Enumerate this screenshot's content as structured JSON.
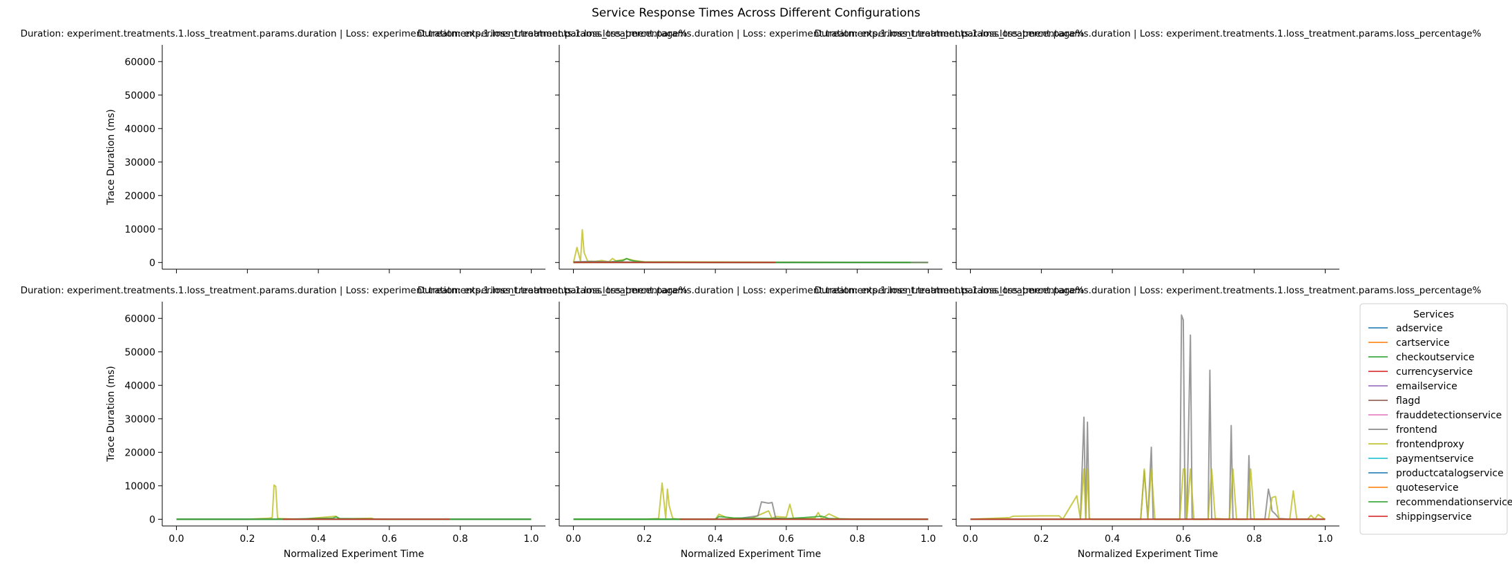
{
  "figure": {
    "title": "Service Response Times Across Different Configurations"
  },
  "panel_title_text": "Duration: experiment.treatments.1.loss_treatment.params.duration | Loss: experiment.treatments.1.loss_treatment.params.loss_percentage%",
  "chart_data": {
    "type": "line",
    "title": "Service Response Times Across Different Configurations",
    "xlabel": "Normalized Experiment Time",
    "ylabel": "Trace Duration (ms)",
    "xlim": [
      -0.04,
      1.04
    ],
    "ylim": [
      -2000,
      65000
    ],
    "xticks": [
      "0.0",
      "0.2",
      "0.4",
      "0.6",
      "0.8",
      "1.0"
    ],
    "yticks": [
      "0",
      "10000",
      "20000",
      "30000",
      "40000",
      "50000",
      "60000"
    ],
    "grid": false,
    "legend": {
      "title": "Services",
      "placement": "right",
      "entries": [
        {
          "name": "adservice",
          "color": "#1f77b4"
        },
        {
          "name": "cartservice",
          "color": "#ff7f0e"
        },
        {
          "name": "checkoutservice",
          "color": "#2ca02c"
        },
        {
          "name": "currencyservice",
          "color": "#d62728"
        },
        {
          "name": "emailservice",
          "color": "#9467bd"
        },
        {
          "name": "flagd",
          "color": "#8c564b"
        },
        {
          "name": "frauddetectionservice",
          "color": "#e377c2"
        },
        {
          "name": "frontend",
          "color": "#7f7f7f"
        },
        {
          "name": "frontendproxy",
          "color": "#bcbd22"
        },
        {
          "name": "paymentservice",
          "color": "#17becf"
        },
        {
          "name": "productcatalogservice",
          "color": "#1f77b4"
        },
        {
          "name": "quoteservice",
          "color": "#ff7f0e"
        },
        {
          "name": "recommendationservice",
          "color": "#2ca02c"
        },
        {
          "name": "shippingservice",
          "color": "#d62728"
        }
      ]
    },
    "panels": [
      {
        "title": "Duration: experiment.treatments.1.loss_treatment.params.duration | Loss: experiment.treatments.1.loss_treatment.params.loss_percentage%",
        "series": []
      },
      {
        "title": "Duration: experiment.treatments.1.loss_treatment.params.duration | Loss: experiment.treatments.1.loss_treatment.params.loss_percentage%",
        "series": [
          {
            "name": "frontendproxy",
            "x": [
              0.0,
              0.01,
              0.02,
              0.025,
              0.03,
              0.04,
              0.06,
              0.08,
              0.1,
              0.11,
              0.12,
              0.14,
              0.15,
              0.16,
              0.17,
              0.2,
              1.0
            ],
            "y": [
              0,
              4500,
              300,
              9800,
              3000,
              400,
              300,
              600,
              200,
              1200,
              500,
              800,
              1100,
              900,
              600,
              200,
              0
            ]
          },
          {
            "name": "checkoutservice",
            "x": [
              0.0,
              0.05,
              0.1,
              0.12,
              0.14,
              0.15,
              0.16,
              0.18,
              0.2,
              0.5,
              1.0
            ],
            "y": [
              0,
              200,
              100,
              400,
              600,
              1200,
              700,
              300,
              100,
              0,
              0
            ]
          },
          {
            "name": "frontend",
            "x": [
              0.0,
              0.05,
              0.1,
              0.2,
              0.4,
              0.6,
              0.8,
              0.95,
              1.0
            ],
            "y": [
              200,
              300,
              200,
              100,
              50,
              50,
              50,
              30,
              30
            ]
          },
          {
            "name": "recommendationservice",
            "x": [
              0.0,
              0.3,
              0.6,
              0.82,
              0.95
            ],
            "y": [
              0,
              0,
              0,
              0,
              0
            ]
          },
          {
            "name": "currencyservice",
            "x": [
              0.0,
              0.2,
              0.4,
              0.57
            ],
            "y": [
              0,
              0,
              0,
              0
            ]
          }
        ]
      },
      {
        "title": "Duration: experiment.treatments.1.loss_treatment.params.duration | Loss: experiment.treatments.1.loss_treatment.params.loss_percentage%",
        "series": []
      },
      {
        "title": "Duration: experiment.treatments.1.loss_treatment.params.duration | Loss: experiment.treatments.1.loss_treatment.params.loss_percentage%",
        "series": [
          {
            "name": "frontendproxy",
            "x": [
              0.0,
              0.2,
              0.26,
              0.27,
              0.275,
              0.28,
              0.285,
              0.29,
              0.35,
              0.45,
              0.46,
              0.55,
              0.56,
              0.6,
              1.0
            ],
            "y": [
              0,
              0,
              300,
              500,
              10200,
              9800,
              400,
              200,
              0,
              900,
              100,
              300,
              0,
              0,
              0
            ]
          },
          {
            "name": "checkoutservice",
            "x": [
              0.0,
              0.2,
              0.3,
              0.44,
              0.45,
              0.46,
              0.6,
              0.8,
              1.0
            ],
            "y": [
              0,
              0,
              0,
              300,
              700,
              200,
              0,
              0,
              0
            ]
          },
          {
            "name": "frontend",
            "x": [
              0.0,
              0.3,
              0.6,
              1.0
            ],
            "y": [
              20,
              20,
              20,
              20
            ]
          },
          {
            "name": "recommendationservice",
            "x": [
              0.0,
              0.3,
              0.6,
              1.0
            ],
            "y": [
              0,
              0,
              0,
              0
            ]
          },
          {
            "name": "currencyservice",
            "x": [
              0.3,
              0.5,
              0.77
            ],
            "y": [
              0,
              0,
              0
            ]
          }
        ]
      },
      {
        "title": "Duration: experiment.treatments.1.loss_treatment.params.duration | Loss: experiment.treatments.1.loss_treatment.params.loss_percentage%",
        "series": [
          {
            "name": "frontendproxy",
            "x": [
              0.0,
              0.2,
              0.24,
              0.25,
              0.26,
              0.265,
              0.27,
              0.28,
              0.3,
              0.4,
              0.41,
              0.43,
              0.45,
              0.5,
              0.55,
              0.56,
              0.57,
              0.6,
              0.61,
              0.62,
              0.68,
              0.69,
              0.7,
              0.72,
              0.75,
              1.0
            ],
            "y": [
              0,
              0,
              200,
              10800,
              300,
              9000,
              4000,
              200,
              0,
              0,
              1500,
              600,
              300,
              200,
              2500,
              200,
              800,
              600,
              4500,
              200,
              300,
              2000,
              200,
              1600,
              100,
              0
            ]
          },
          {
            "name": "frontend",
            "x": [
              0.0,
              0.45,
              0.52,
              0.53,
              0.55,
              0.56,
              0.57,
              0.6,
              0.7,
              1.0
            ],
            "y": [
              0,
              0,
              1000,
              5200,
              4800,
              5000,
              300,
              100,
              0,
              0
            ]
          },
          {
            "name": "checkoutservice",
            "x": [
              0.0,
              0.4,
              0.41,
              0.45,
              0.5,
              0.6,
              0.65,
              0.7,
              0.72,
              0.8,
              1.0
            ],
            "y": [
              0,
              0,
              800,
              400,
              300,
              200,
              500,
              900,
              200,
              0,
              0
            ]
          },
          {
            "name": "recommendationservice",
            "x": [
              0.0,
              0.5,
              1.0
            ],
            "y": [
              0,
              0,
              0
            ]
          },
          {
            "name": "currencyservice",
            "x": [
              0.3,
              0.6,
              1.0
            ],
            "y": [
              0,
              0,
              0
            ]
          }
        ]
      },
      {
        "title": "Duration: experiment.treatments.1.loss_treatment.params.duration | Loss: experiment.treatments.1.loss_treatment.params.loss_percentage%",
        "series": [
          {
            "name": "frontend",
            "x": [
              0.0,
              0.31,
              0.32,
              0.325,
              0.33,
              0.335,
              0.34,
              0.48,
              0.49,
              0.5,
              0.5,
              0.51,
              0.515,
              0.52,
              0.59,
              0.595,
              0.6,
              0.605,
              0.61,
              0.62,
              0.625,
              0.63,
              0.64,
              0.67,
              0.675,
              0.68,
              0.69,
              0.73,
              0.735,
              0.74,
              0.75,
              0.78,
              0.785,
              0.79,
              0.8,
              0.83,
              0.84,
              0.845,
              0.85,
              0.86,
              0.87,
              0.9,
              1.0
            ],
            "y": [
              0,
              0,
              30500,
              100,
              29000,
              200,
              0,
              0,
              14500,
              200,
              0,
              21500,
              200,
              0,
              0,
              61000,
              59500,
              300,
              0,
              55000,
              300,
              0,
              0,
              0,
              44500,
              200,
              0,
              0,
              28000,
              200,
              0,
              0,
              19000,
              200,
              0,
              0,
              9000,
              6500,
              2500,
              1500,
              200,
              0,
              0
            ]
          },
          {
            "name": "frontendproxy",
            "x": [
              0.0,
              0.11,
              0.12,
              0.2,
              0.25,
              0.26,
              0.3,
              0.31,
              0.32,
              0.325,
              0.33,
              0.335,
              0.34,
              0.48,
              0.49,
              0.5,
              0.5,
              0.51,
              0.52,
              0.59,
              0.6,
              0.605,
              0.61,
              0.62,
              0.63,
              0.67,
              0.68,
              0.69,
              0.73,
              0.74,
              0.75,
              0.78,
              0.79,
              0.8,
              0.84,
              0.85,
              0.86,
              0.87,
              0.9,
              0.91,
              0.92,
              0.95,
              0.96,
              0.97,
              0.98,
              1.0
            ],
            "y": [
              0,
              500,
              900,
              1000,
              1000,
              0,
              7000,
              0,
              15000,
              100,
              15000,
              200,
              0,
              0,
              15000,
              200,
              0,
              15000,
              0,
              0,
              15000,
              15000,
              200,
              15000,
              0,
              0,
              15000,
              200,
              0,
              15000,
              0,
              0,
              15000,
              0,
              0,
              6500,
              6800,
              0,
              0,
              8500,
              0,
              0,
              1200,
              0,
              1400,
              0
            ]
          },
          {
            "name": "checkoutservice",
            "x": [
              0.0,
              0.6,
              1.0
            ],
            "y": [
              0,
              0,
              0
            ]
          },
          {
            "name": "currencyservice",
            "x": [
              0.0,
              0.5,
              1.0
            ],
            "y": [
              0,
              0,
              0
            ]
          }
        ]
      }
    ]
  }
}
